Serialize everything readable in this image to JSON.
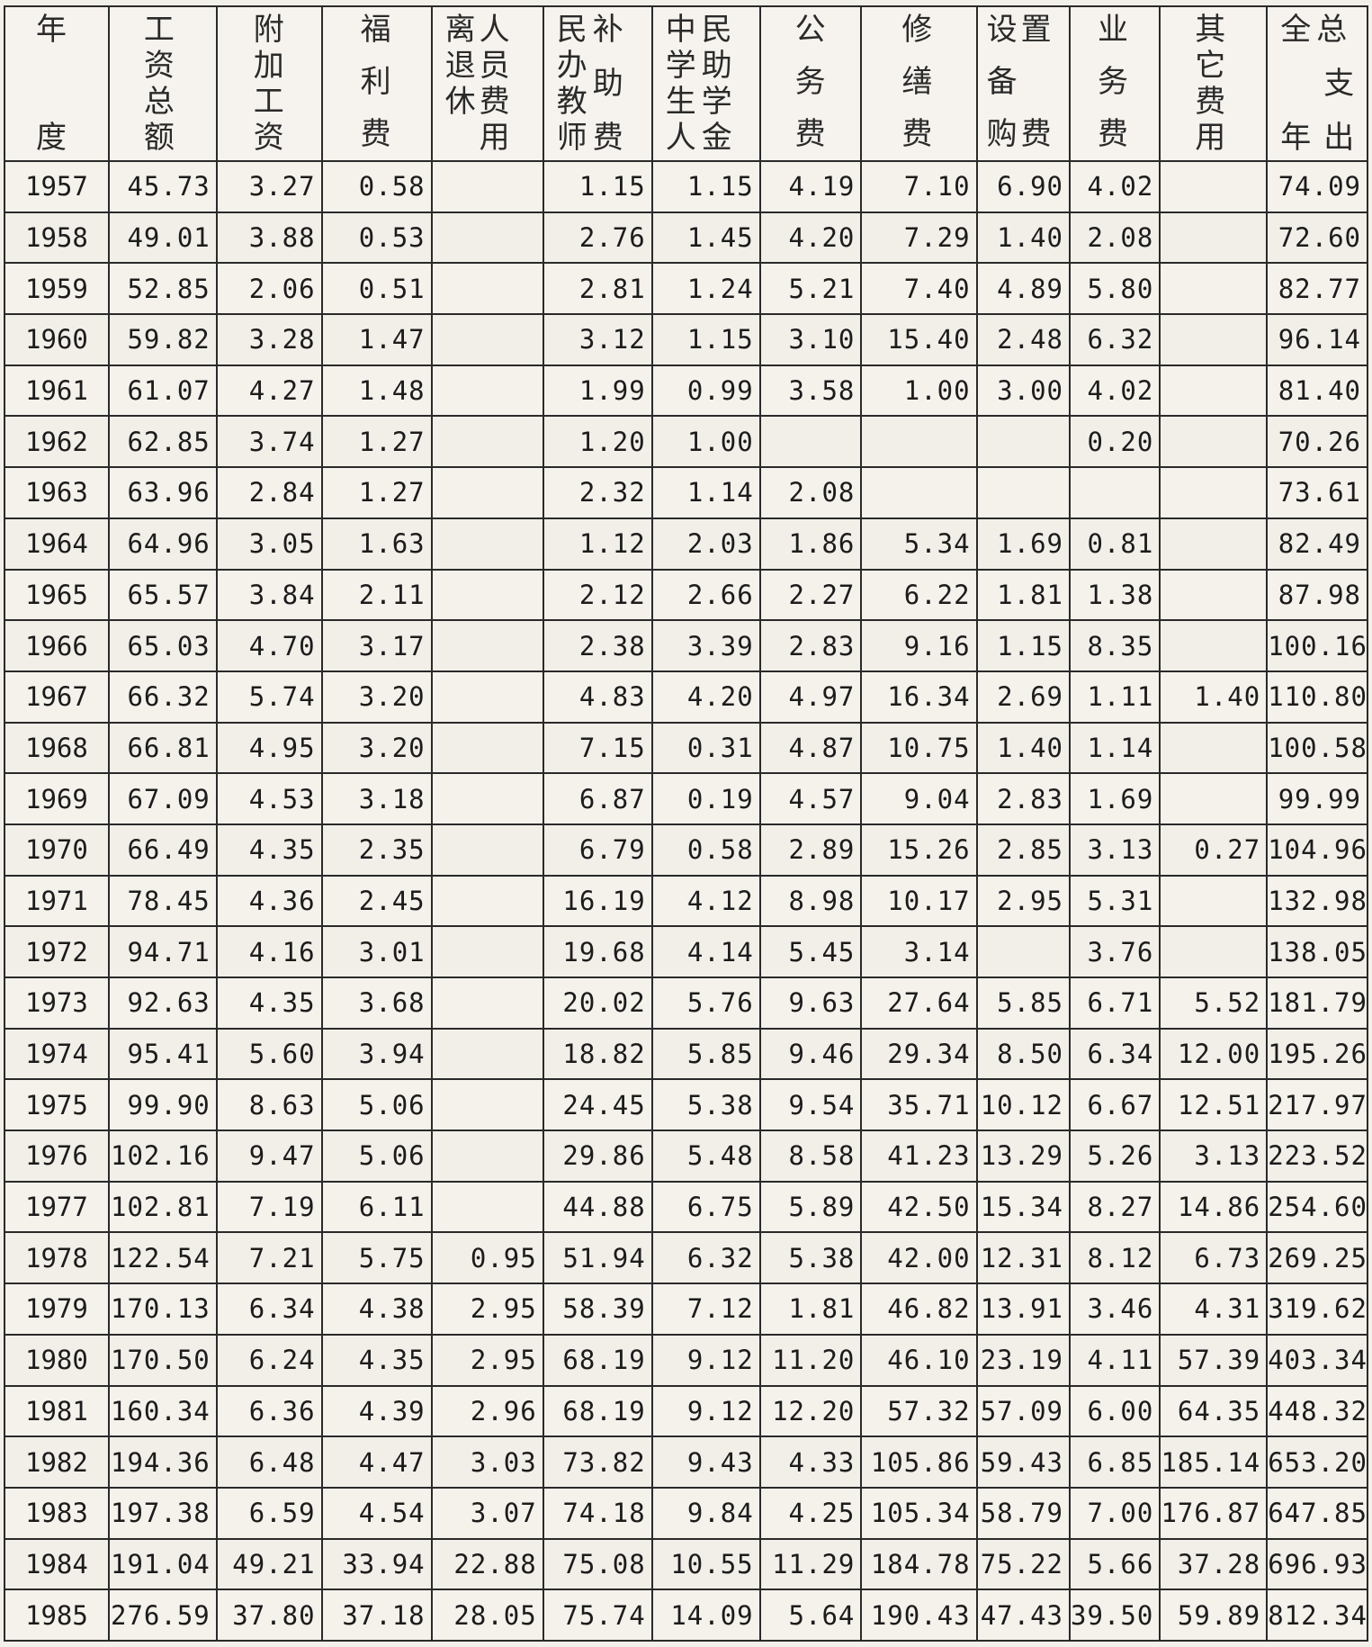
{
  "table": {
    "headers": {
      "year": [
        "年",
        "度"
      ],
      "wages": [
        "工",
        "资",
        "总",
        "额"
      ],
      "extra": [
        "附",
        "加",
        "工",
        "资"
      ],
      "welfare": [
        "福",
        "利",
        "费"
      ],
      "retired": [
        "离",
        "退",
        "休",
        "人",
        "员",
        "费",
        "用"
      ],
      "minban": [
        "民",
        "办",
        "教",
        "师",
        "补",
        "助",
        "费"
      ],
      "student": [
        "中",
        "学",
        "生",
        "人",
        "民",
        "助",
        "学",
        "金"
      ],
      "office": [
        "公",
        "务",
        "费"
      ],
      "repair": [
        "修",
        "缮",
        "费"
      ],
      "equip": [
        "设",
        "备",
        "购",
        "置",
        "费"
      ],
      "business": [
        "业",
        "务",
        "费"
      ],
      "other": [
        "其",
        "它",
        "费",
        "用"
      ],
      "total": [
        "全",
        "年",
        "总",
        "支",
        "出"
      ]
    },
    "rows": [
      {
        "year": "1957",
        "wages": "45.73",
        "extra": "3.27",
        "welfare": "0.58",
        "retired": "",
        "minban": "1.15",
        "student": "1.15",
        "office": "4.19",
        "repair": "7.10",
        "equip": "6.90",
        "business": "4.02",
        "other": "",
        "total": "74.09"
      },
      {
        "year": "1958",
        "wages": "49.01",
        "extra": "3.88",
        "welfare": "0.53",
        "retired": "",
        "minban": "2.76",
        "student": "1.45",
        "office": "4.20",
        "repair": "7.29",
        "equip": "1.40",
        "business": "2.08",
        "other": "",
        "total": "72.60"
      },
      {
        "year": "1959",
        "wages": "52.85",
        "extra": "2.06",
        "welfare": "0.51",
        "retired": "",
        "minban": "2.81",
        "student": "1.24",
        "office": "5.21",
        "repair": "7.40",
        "equip": "4.89",
        "business": "5.80",
        "other": "",
        "total": "82.77"
      },
      {
        "year": "1960",
        "wages": "59.82",
        "extra": "3.28",
        "welfare": "1.47",
        "retired": "",
        "minban": "3.12",
        "student": "1.15",
        "office": "3.10",
        "repair": "15.40",
        "equip": "2.48",
        "business": "6.32",
        "other": "",
        "total": "96.14"
      },
      {
        "year": "1961",
        "wages": "61.07",
        "extra": "4.27",
        "welfare": "1.48",
        "retired": "",
        "minban": "1.99",
        "student": "0.99",
        "office": "3.58",
        "repair": "1.00",
        "equip": "3.00",
        "business": "4.02",
        "other": "",
        "total": "81.40"
      },
      {
        "year": "1962",
        "wages": "62.85",
        "extra": "3.74",
        "welfare": "1.27",
        "retired": "",
        "minban": "1.20",
        "student": "1.00",
        "office": "",
        "repair": "",
        "equip": "",
        "business": "0.20",
        "other": "",
        "total": "70.26"
      },
      {
        "year": "1963",
        "wages": "63.96",
        "extra": "2.84",
        "welfare": "1.27",
        "retired": "",
        "minban": "2.32",
        "student": "1.14",
        "office": "2.08",
        "repair": "",
        "equip": "",
        "business": "",
        "other": "",
        "total": "73.61"
      },
      {
        "year": "1964",
        "wages": "64.96",
        "extra": "3.05",
        "welfare": "1.63",
        "retired": "",
        "minban": "1.12",
        "student": "2.03",
        "office": "1.86",
        "repair": "5.34",
        "equip": "1.69",
        "business": "0.81",
        "other": "",
        "total": "82.49"
      },
      {
        "year": "1965",
        "wages": "65.57",
        "extra": "3.84",
        "welfare": "2.11",
        "retired": "",
        "minban": "2.12",
        "student": "2.66",
        "office": "2.27",
        "repair": "6.22",
        "equip": "1.81",
        "business": "1.38",
        "other": "",
        "total": "87.98"
      },
      {
        "year": "1966",
        "wages": "65.03",
        "extra": "4.70",
        "welfare": "3.17",
        "retired": "",
        "minban": "2.38",
        "student": "3.39",
        "office": "2.83",
        "repair": "9.16",
        "equip": "1.15",
        "business": "8.35",
        "other": "",
        "total": "100.16"
      },
      {
        "year": "1967",
        "wages": "66.32",
        "extra": "5.74",
        "welfare": "3.20",
        "retired": "",
        "minban": "4.83",
        "student": "4.20",
        "office": "4.97",
        "repair": "16.34",
        "equip": "2.69",
        "business": "1.11",
        "other": "1.40",
        "total": "110.80"
      },
      {
        "year": "1968",
        "wages": "66.81",
        "extra": "4.95",
        "welfare": "3.20",
        "retired": "",
        "minban": "7.15",
        "student": "0.31",
        "office": "4.87",
        "repair": "10.75",
        "equip": "1.40",
        "business": "1.14",
        "other": "",
        "total": "100.58"
      },
      {
        "year": "1969",
        "wages": "67.09",
        "extra": "4.53",
        "welfare": "3.18",
        "retired": "",
        "minban": "6.87",
        "student": "0.19",
        "office": "4.57",
        "repair": "9.04",
        "equip": "2.83",
        "business": "1.69",
        "other": "",
        "total": "99.99"
      },
      {
        "year": "1970",
        "wages": "66.49",
        "extra": "4.35",
        "welfare": "2.35",
        "retired": "",
        "minban": "6.79",
        "student": "0.58",
        "office": "2.89",
        "repair": "15.26",
        "equip": "2.85",
        "business": "3.13",
        "other": "0.27",
        "total": "104.96"
      },
      {
        "year": "1971",
        "wages": "78.45",
        "extra": "4.36",
        "welfare": "2.45",
        "retired": "",
        "minban": "16.19",
        "student": "4.12",
        "office": "8.98",
        "repair": "10.17",
        "equip": "2.95",
        "business": "5.31",
        "other": "",
        "total": "132.98"
      },
      {
        "year": "1972",
        "wages": "94.71",
        "extra": "4.16",
        "welfare": "3.01",
        "retired": "",
        "minban": "19.68",
        "student": "4.14",
        "office": "5.45",
        "repair": "3.14",
        "equip": "",
        "business": "3.76",
        "other": "",
        "total": "138.05"
      },
      {
        "year": "1973",
        "wages": "92.63",
        "extra": "4.35",
        "welfare": "3.68",
        "retired": "",
        "minban": "20.02",
        "student": "5.76",
        "office": "9.63",
        "repair": "27.64",
        "equip": "5.85",
        "business": "6.71",
        "other": "5.52",
        "total": "181.79"
      },
      {
        "year": "1974",
        "wages": "95.41",
        "extra": "5.60",
        "welfare": "3.94",
        "retired": "",
        "minban": "18.82",
        "student": "5.85",
        "office": "9.46",
        "repair": "29.34",
        "equip": "8.50",
        "business": "6.34",
        "other": "12.00",
        "total": "195.26"
      },
      {
        "year": "1975",
        "wages": "99.90",
        "extra": "8.63",
        "welfare": "5.06",
        "retired": "",
        "minban": "24.45",
        "student": "5.38",
        "office": "9.54",
        "repair": "35.71",
        "equip": "10.12",
        "business": "6.67",
        "other": "12.51",
        "total": "217.97"
      },
      {
        "year": "1976",
        "wages": "102.16",
        "extra": "9.47",
        "welfare": "5.06",
        "retired": "",
        "minban": "29.86",
        "student": "5.48",
        "office": "8.58",
        "repair": "41.23",
        "equip": "13.29",
        "business": "5.26",
        "other": "3.13",
        "total": "223.52"
      },
      {
        "year": "1977",
        "wages": "102.81",
        "extra": "7.19",
        "welfare": "6.11",
        "retired": "",
        "minban": "44.88",
        "student": "6.75",
        "office": "5.89",
        "repair": "42.50",
        "equip": "15.34",
        "business": "8.27",
        "other": "14.86",
        "total": "254.60"
      },
      {
        "year": "1978",
        "wages": "122.54",
        "extra": "7.21",
        "welfare": "5.75",
        "retired": "0.95",
        "minban": "51.94",
        "student": "6.32",
        "office": "5.38",
        "repair": "42.00",
        "equip": "12.31",
        "business": "8.12",
        "other": "6.73",
        "total": "269.25"
      },
      {
        "year": "1979",
        "wages": "170.13",
        "extra": "6.34",
        "welfare": "4.38",
        "retired": "2.95",
        "minban": "58.39",
        "student": "7.12",
        "office": "1.81",
        "repair": "46.82",
        "equip": "13.91",
        "business": "3.46",
        "other": "4.31",
        "total": "319.62"
      },
      {
        "year": "1980",
        "wages": "170.50",
        "extra": "6.24",
        "welfare": "4.35",
        "retired": "2.95",
        "minban": "68.19",
        "student": "9.12",
        "office": "11.20",
        "repair": "46.10",
        "equip": "23.19",
        "business": "4.11",
        "other": "57.39",
        "total": "403.34"
      },
      {
        "year": "1981",
        "wages": "160.34",
        "extra": "6.36",
        "welfare": "4.39",
        "retired": "2.96",
        "minban": "68.19",
        "student": "9.12",
        "office": "12.20",
        "repair": "57.32",
        "equip": "57.09",
        "business": "6.00",
        "other": "64.35",
        "total": "448.32"
      },
      {
        "year": "1982",
        "wages": "194.36",
        "extra": "6.48",
        "welfare": "4.47",
        "retired": "3.03",
        "minban": "73.82",
        "student": "9.43",
        "office": "4.33",
        "repair": "105.86",
        "equip": "59.43",
        "business": "6.85",
        "other": "185.14",
        "total": "653.20"
      },
      {
        "year": "1983",
        "wages": "197.38",
        "extra": "6.59",
        "welfare": "4.54",
        "retired": "3.07",
        "minban": "74.18",
        "student": "9.84",
        "office": "4.25",
        "repair": "105.34",
        "equip": "58.79",
        "business": "7.00",
        "other": "176.87",
        "total": "647.85"
      },
      {
        "year": "1984",
        "wages": "191.04",
        "extra": "49.21",
        "welfare": "33.94",
        "retired": "22.88",
        "minban": "75.08",
        "student": "10.55",
        "office": "11.29",
        "repair": "184.78",
        "equip": "75.22",
        "business": "5.66",
        "other": "37.28",
        "total": "696.93"
      },
      {
        "year": "1985",
        "wages": "276.59",
        "extra": "37.80",
        "welfare": "37.18",
        "retired": "28.05",
        "minban": "75.74",
        "student": "14.09",
        "office": "5.64",
        "repair": "190.43",
        "equip": "47.43",
        "business": "39.50",
        "other": "59.89",
        "total": "812.34"
      }
    ]
  }
}
